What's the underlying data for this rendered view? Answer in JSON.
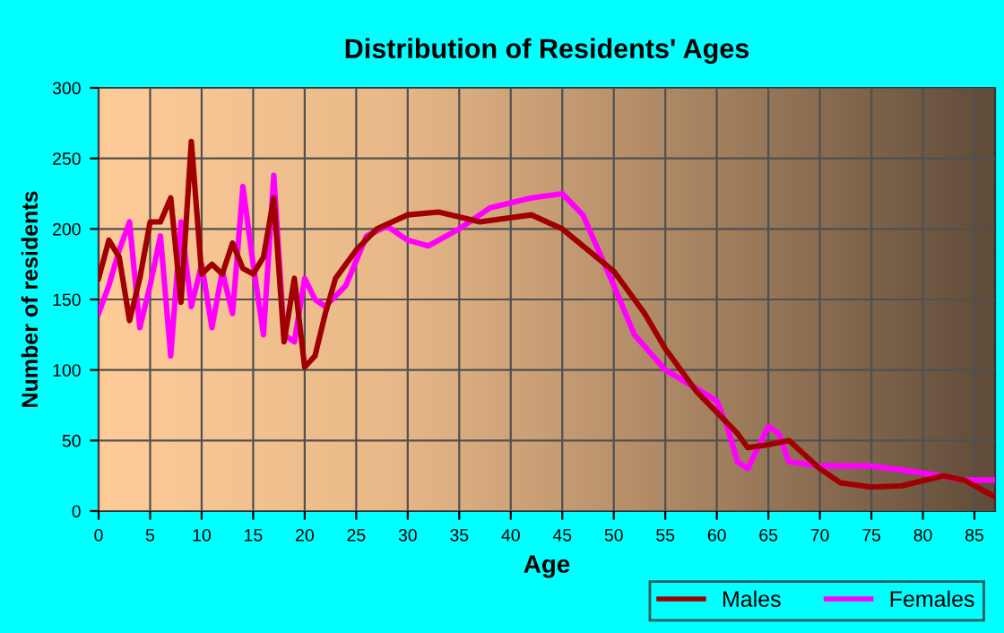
{
  "chart_data": {
    "type": "line",
    "title": "Distribution of Residents' Ages",
    "xlabel": "Age",
    "ylabel": "Number of residents",
    "xlim": [
      0,
      87
    ],
    "ylim": [
      0,
      300
    ],
    "xticks": [
      0,
      5,
      10,
      15,
      20,
      25,
      30,
      35,
      40,
      45,
      50,
      55,
      60,
      65,
      70,
      75,
      80,
      85
    ],
    "yticks": [
      0,
      50,
      100,
      150,
      200,
      250,
      300
    ],
    "grid": true,
    "legend": "bottom right",
    "marker": "none",
    "line_style": "solid",
    "series": [
      {
        "name": "Males",
        "color": "#a00000",
        "x": [
          0,
          1,
          2,
          3,
          4,
          5,
          6,
          7,
          8,
          9,
          10,
          11,
          12,
          13,
          14,
          15,
          16,
          17,
          18,
          19,
          20,
          21,
          22,
          23,
          25,
          27,
          30,
          33,
          37,
          42,
          45,
          50,
          53,
          55,
          58,
          60,
          62,
          63,
          65,
          67,
          70,
          72,
          75,
          78,
          82,
          84,
          87
        ],
        "values": [
          165,
          192,
          180,
          135,
          165,
          205,
          205,
          222,
          148,
          262,
          168,
          175,
          168,
          190,
          172,
          168,
          180,
          222,
          120,
          165,
          102,
          110,
          140,
          165,
          185,
          200,
          210,
          212,
          205,
          210,
          200,
          170,
          140,
          115,
          85,
          70,
          55,
          45,
          47,
          50,
          30,
          20,
          17,
          18,
          25,
          22,
          10
        ]
      },
      {
        "name": "Females",
        "color": "#ff00ff",
        "x": [
          0,
          1,
          2,
          3,
          4,
          5,
          6,
          7,
          8,
          9,
          10,
          11,
          12,
          13,
          14,
          15,
          16,
          17,
          18,
          19,
          20,
          21,
          22,
          24,
          26,
          28,
          30,
          32,
          35,
          38,
          42,
          45,
          47,
          50,
          52,
          55,
          58,
          60,
          61,
          62,
          63,
          65,
          66,
          67,
          70,
          75,
          80,
          84,
          87
        ],
        "values": [
          140,
          160,
          185,
          205,
          130,
          160,
          195,
          110,
          205,
          145,
          175,
          130,
          170,
          140,
          230,
          175,
          125,
          238,
          125,
          120,
          165,
          150,
          145,
          160,
          195,
          202,
          192,
          188,
          200,
          215,
          222,
          225,
          210,
          160,
          125,
          100,
          87,
          78,
          60,
          35,
          30,
          60,
          55,
          35,
          32,
          32,
          27,
          22,
          22
        ]
      }
    ]
  }
}
